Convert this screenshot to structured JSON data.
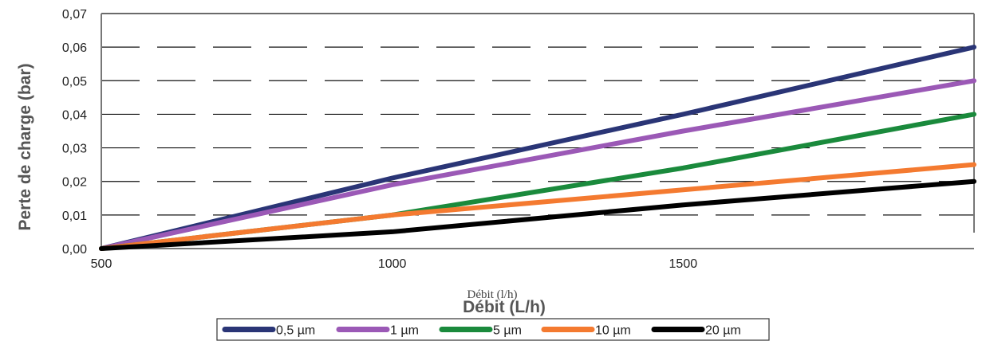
{
  "chart_data": {
    "type": "line",
    "xlabel": "Débit (L/h)",
    "xlabel_small": "Débit (l/h)",
    "ylabel": "Perte de charge  (bar)",
    "x_ticks": [
      "500",
      "1000",
      "1500"
    ],
    "y_ticks": [
      "0,00",
      "0,01",
      "0,02",
      "0,03",
      "0,04",
      "0,05",
      "0,06",
      "0,07"
    ],
    "xlim": [
      500,
      2000
    ],
    "ylim": [
      0,
      0.07
    ],
    "grid": "horizontal-dashed",
    "legend_position": "bottom",
    "series": [
      {
        "name": "0,5 µm",
        "color": "#2a3576",
        "x": [
          500,
          1000,
          1500,
          2000
        ],
        "values": [
          0.0,
          0.021,
          0.04,
          0.06
        ]
      },
      {
        "name": "1 µm",
        "color": "#9b59b6",
        "x": [
          500,
          1000,
          1500,
          2000
        ],
        "values": [
          0.0,
          0.019,
          0.035,
          0.05
        ]
      },
      {
        "name": "5 µm",
        "color": "#1a8a3c",
        "x": [
          500,
          1000,
          1500,
          2000
        ],
        "values": [
          0.0,
          0.01,
          0.024,
          0.04
        ]
      },
      {
        "name": "10 µm",
        "color": "#f47a30",
        "x": [
          500,
          1000,
          1500,
          2000
        ],
        "values": [
          0.0,
          0.01,
          0.0175,
          0.025
        ]
      },
      {
        "name": "20 µm",
        "color": "#000000",
        "x": [
          500,
          1000,
          1500,
          2000
        ],
        "values": [
          0.0,
          0.005,
          0.013,
          0.02
        ]
      }
    ]
  }
}
